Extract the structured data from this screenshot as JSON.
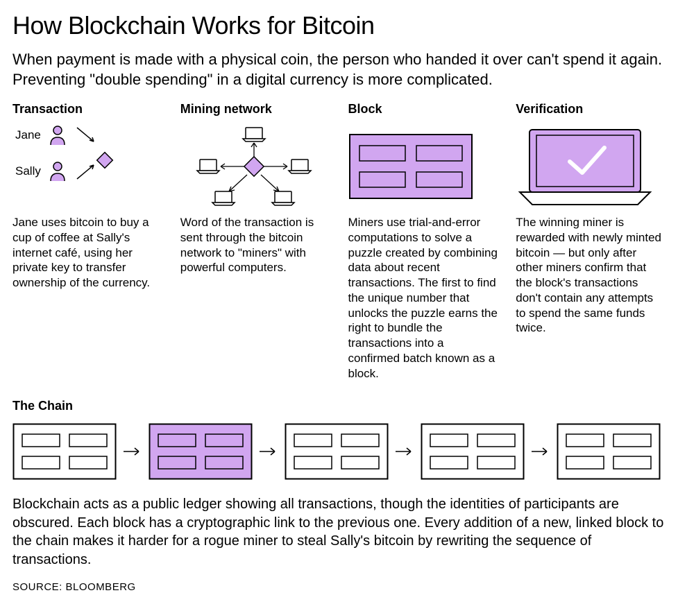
{
  "title": "How Blockchain Works for Bitcoin",
  "intro": "When payment is made with a physical coin, the person who handed it over can't spend it again. Preventing \"double spending\" in a digital currency is more complicated.",
  "columns": [
    {
      "header": "Transaction",
      "persons": [
        {
          "label": "Jane"
        },
        {
          "label": "Sally"
        }
      ],
      "desc": "Jane uses bitcoin to buy a cup of coffee at Sally's internet café, using her private key to transfer ownership of the currency."
    },
    {
      "header": "Mining network",
      "desc": "Word of the transaction is sent through the bitcoin network to \"miners\" with powerful computers."
    },
    {
      "header": "Block",
      "desc": "Miners use trial-and-error computations to solve a puzzle created by combining data about recent transactions. The first to find the unique number that unlocks the puzzle earns the right to bundle the transactions into a confirmed batch known as a block."
    },
    {
      "header": "Verification",
      "desc": "The winning miner is rewarded with newly minted bitcoin — but only after other miners confirm that the block's transactions don't contain any attempts to spend the same funds twice."
    }
  ],
  "chain": {
    "header": "The Chain",
    "blocks": 5,
    "highlighted_index": 1,
    "text": "Blockchain acts as a public ledger showing all transactions, though the identities of participants are obscured. Each block has a cryptographic link to the previous one. Every addition of a new, linked block to the chain makes it harder for a rogue miner to steal Sally's bitcoin by rewriting the sequence of transactions."
  },
  "source": "SOURCE: BLOOMBERG",
  "style": {
    "accent_fill": "#d1a6f0",
    "stroke": "#000000",
    "stroke_width": 1.5,
    "block_width": 150,
    "block_height": 80,
    "title_fontsize": 36,
    "intro_fontsize": 22,
    "header_fontsize": 18,
    "desc_fontsize": 17,
    "chain_text_fontsize": 20
  }
}
